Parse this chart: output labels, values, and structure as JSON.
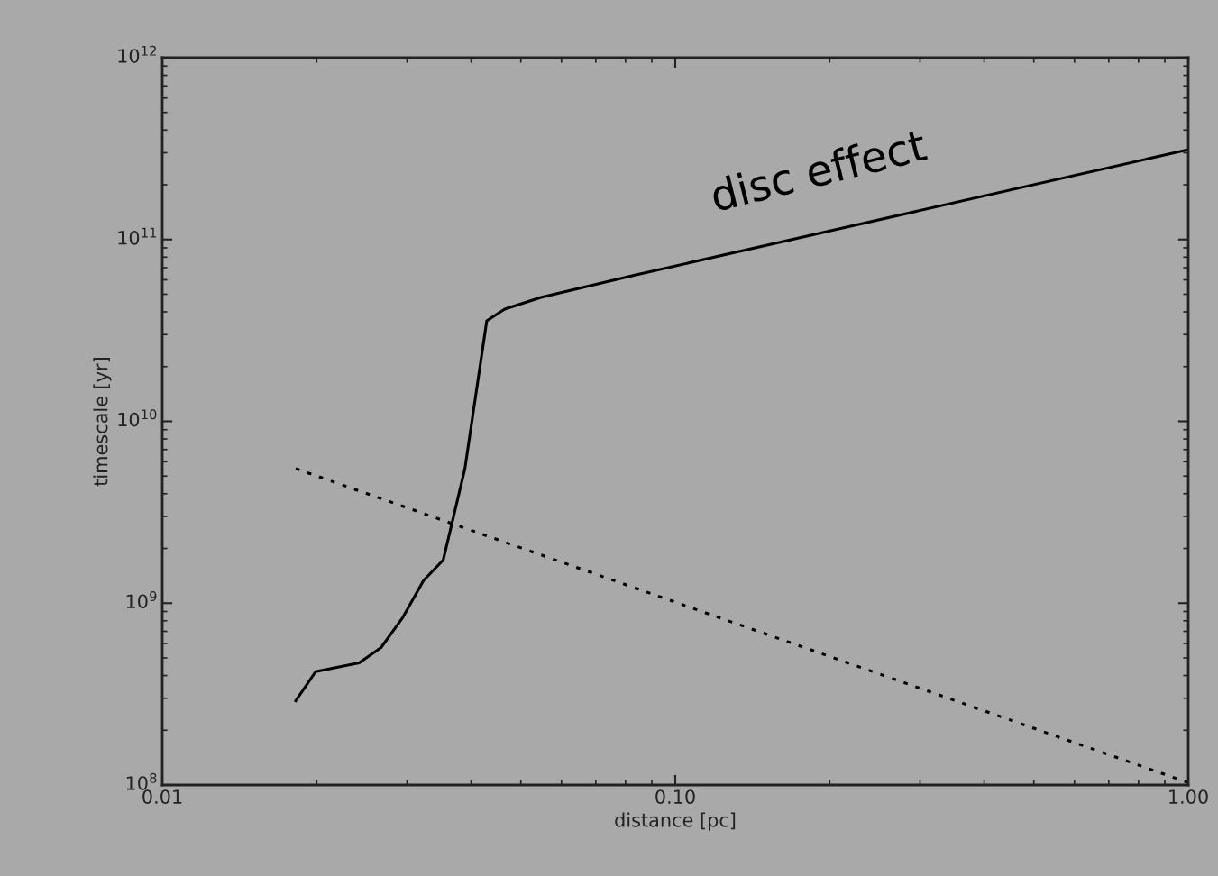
{
  "chart_data": {
    "type": "line",
    "xlabel": "distance [pc]",
    "ylabel": "timescale [yr]",
    "log": "xy",
    "grid": false,
    "legend": false,
    "marker": "none",
    "xlim": [
      0.01,
      1.0
    ],
    "xticks": [
      {
        "value": 0.01,
        "label": "0.01"
      },
      {
        "value": 0.1,
        "label": "0.10"
      },
      {
        "value": 1.0,
        "label": "1.00"
      }
    ],
    "ylim": [
      100000000.0,
      1000000000000.0
    ],
    "yticks": [
      {
        "value": 100000000.0,
        "label": "10$^{8}$"
      },
      {
        "value": 1000000000.0,
        "label": "10$^{9}$"
      },
      {
        "value": 10000000000.0,
        "label": "10$^{10}$"
      },
      {
        "value": 100000000000.0,
        "label": "10$^{11}$"
      },
      {
        "value": 1000000000000.0,
        "label": "10$^{12}$"
      }
    ],
    "series": [
      {
        "color": "#000000",
        "line_style": "solid",
        "x": [
          0.0182,
          0.0199,
          0.0242,
          0.0267,
          0.0294,
          0.0323,
          0.0353,
          0.0389,
          0.0429,
          0.0465,
          0.0547,
          0.082,
          1.0
        ],
        "values": [
          290000000.0,
          420000000.0,
          470000000.0,
          570000000.0,
          830000000.0,
          1330000000.0,
          1730000000.0,
          5500000000.0,
          35700000000.0,
          41400000000.0,
          48000000000.0,
          63000000000.0,
          312000000000.0
        ]
      },
      {
        "color": "#000000",
        "line_style": "dotted",
        "x": [
          0.0182,
          1.0
        ],
        "values": [
          5500000000.0,
          103000000.0
        ]
      }
    ],
    "annotations": [
      "disc effect"
    ]
  }
}
